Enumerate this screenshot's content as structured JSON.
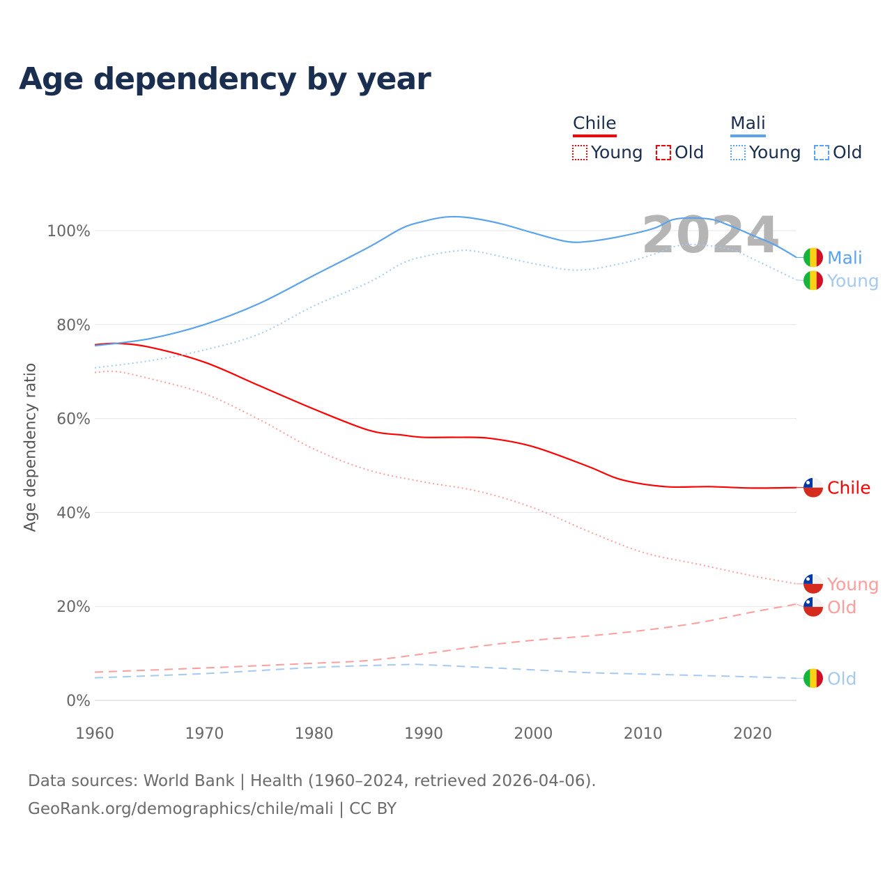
{
  "title": "Age dependency by year",
  "legend": {
    "groups": [
      {
        "country": "Chile",
        "young": "Young",
        "old": "Old"
      },
      {
        "country": "Mali",
        "young": "Young",
        "old": "Old"
      }
    ]
  },
  "footer": {
    "line1": "Data sources: World Bank | Health (1960–2024, retrieved 2026-04-06).",
    "line2": "GeoRank.org/demographics/chile/mali | CC BY"
  },
  "colors": {
    "chile": "#ff0000",
    "chile_light": "#ff9c9c",
    "mali": "#5ba3ea",
    "mali_light": "#a6c9f0",
    "title": "#1a2e50"
  },
  "chart_data": {
    "type": "line",
    "title": "Age dependency by year",
    "xlabel": "",
    "ylabel": "Age dependency ratio",
    "xlim": [
      1960,
      2024
    ],
    "ylim": [
      0,
      100
    ],
    "x_ticks": [
      1960,
      1970,
      1980,
      1990,
      2000,
      2010,
      2020
    ],
    "y_ticks": [
      "0%",
      "20%",
      "40%",
      "60%",
      "80%",
      "100%"
    ],
    "y_tick_values": [
      0,
      20,
      40,
      60,
      80,
      100
    ],
    "year_label": "2024",
    "series": [
      {
        "name": "Chile",
        "label": "Chile",
        "country": "chile",
        "style": "solid",
        "color": "#ff0000",
        "x": [
          1960,
          1962,
          1965,
          1970,
          1975,
          1980,
          1985,
          1988,
          1990,
          1993,
          1996,
          2000,
          2005,
          2008,
          2012,
          2016,
          2020,
          2024
        ],
        "values": [
          75.7,
          76,
          75.2,
          72,
          67,
          62,
          57.5,
          56.5,
          56,
          56,
          55.8,
          54,
          49.8,
          47,
          45.5,
          45.5,
          45.2,
          45.3
        ]
      },
      {
        "name": "Chile Young",
        "label": "Young",
        "country": "chile",
        "style": "dotted",
        "color": "#ff9c9c",
        "x": [
          1960,
          1962,
          1965,
          1970,
          1975,
          1980,
          1985,
          1990,
          1995,
          2000,
          2005,
          2010,
          2015,
          2020,
          2024
        ],
        "values": [
          69.8,
          70,
          68.5,
          65.3,
          59.8,
          53.5,
          49,
          46.5,
          44.5,
          41,
          36,
          31.5,
          29,
          26.5,
          24.8
        ]
      },
      {
        "name": "Chile Old",
        "label": "Old",
        "country": "chile",
        "style": "dashed",
        "color": "#ff9c9c",
        "x": [
          1960,
          1970,
          1980,
          1985,
          1990,
          1995,
          2000,
          2005,
          2010,
          2015,
          2020,
          2024
        ],
        "values": [
          6,
          6.9,
          7.9,
          8.5,
          9.9,
          11.5,
          12.8,
          13.7,
          14.9,
          16.5,
          18.8,
          20.5
        ]
      },
      {
        "name": "Mali",
        "label": "Mali",
        "country": "mali",
        "style": "solid",
        "color": "#5ba3ea",
        "x": [
          1960,
          1965,
          1970,
          1975,
          1980,
          1985,
          1988,
          1990,
          1992,
          1994,
          1997,
          2000,
          2003,
          2005,
          2008,
          2011,
          2013,
          2016,
          2018,
          2020,
          2022,
          2024
        ],
        "values": [
          75.5,
          77,
          80,
          84.5,
          90.5,
          96.5,
          100.5,
          102,
          102.9,
          102.8,
          101.5,
          99.5,
          97.7,
          97.7,
          98.8,
          100.5,
          102.5,
          102.5,
          101,
          99,
          97,
          94.3
        ]
      },
      {
        "name": "Mali Young",
        "label": "Young",
        "country": "mali",
        "style": "dotted",
        "color": "#a6c9f0",
        "x": [
          1960,
          1965,
          1970,
          1975,
          1980,
          1985,
          1988,
          1990,
          1993,
          1995,
          2000,
          2004,
          2008,
          2011,
          2013,
          2015,
          2018,
          2020,
          2024
        ],
        "values": [
          70.8,
          72.3,
          74.6,
          78,
          84,
          89,
          93,
          94.5,
          95.7,
          95.5,
          93,
          91.6,
          93,
          95,
          96.7,
          97,
          96,
          94,
          89.5
        ]
      },
      {
        "name": "Mali Old",
        "label": "Old",
        "country": "mali",
        "style": "dashed",
        "color": "#a6c9f0",
        "x": [
          1960,
          1970,
          1980,
          1988,
          1990,
          2000,
          2005,
          2010,
          2020,
          2024
        ],
        "values": [
          4.8,
          5.7,
          7,
          7.6,
          7.6,
          6.5,
          5.9,
          5.6,
          5.0,
          4.7
        ]
      }
    ]
  }
}
